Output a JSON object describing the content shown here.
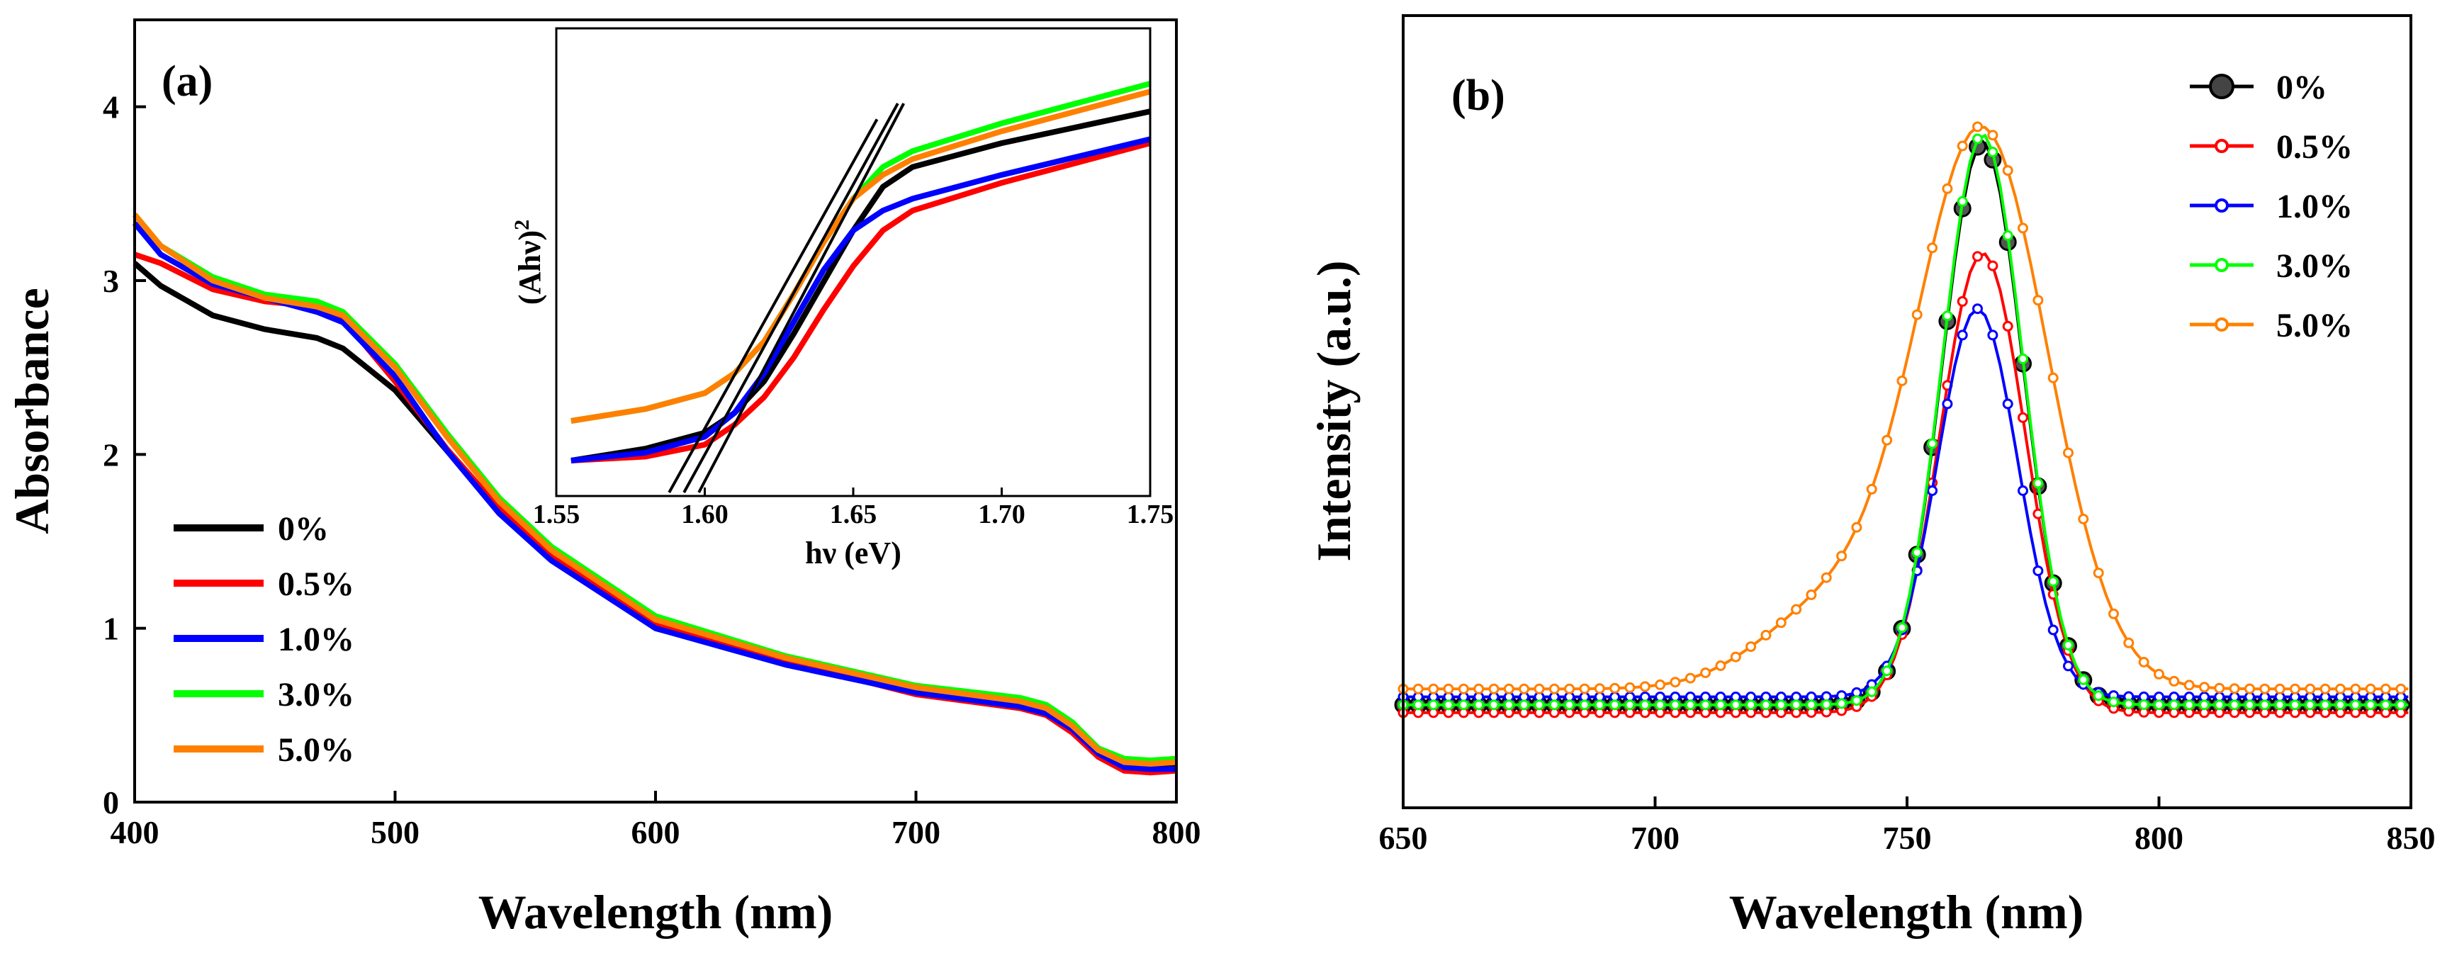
{
  "colors": {
    "0%": "#000000",
    "0.5%": "#ff0000",
    "1.0%": "#0000ff",
    "3.0%": "#00ff00",
    "5.0%": "#ff8000"
  },
  "chart_data": [
    {
      "id": "a",
      "type": "line",
      "panel_label": "(a)",
      "xlabel": "Wavelength (nm)",
      "ylabel": "Absorbance",
      "xlim": [
        400,
        800
      ],
      "ylim": [
        0,
        4.5
      ],
      "xticks": [
        "400",
        "500",
        "600",
        "700",
        "800"
      ],
      "yticks": [
        "0",
        "1",
        "2",
        "3",
        "4"
      ],
      "legend_position": "bottom-left",
      "series": [
        {
          "name": "0%",
          "x": [
            400,
            410,
            430,
            450,
            470,
            480,
            500,
            520,
            540,
            560,
            600,
            650,
            700,
            740,
            750,
            760,
            770,
            780,
            790,
            800
          ],
          "y": [
            3.1,
            2.97,
            2.8,
            2.72,
            2.67,
            2.61,
            2.37,
            2.02,
            1.68,
            1.4,
            1.0,
            0.8,
            0.64,
            0.56,
            0.52,
            0.42,
            0.3,
            0.22,
            0.2,
            0.2
          ]
        },
        {
          "name": "0.5%",
          "x": [
            400,
            410,
            430,
            450,
            470,
            480,
            500,
            520,
            540,
            560,
            600,
            650,
            700,
            740,
            750,
            760,
            770,
            780,
            790,
            800
          ],
          "y": [
            3.15,
            3.1,
            2.95,
            2.88,
            2.85,
            2.78,
            2.42,
            2.03,
            1.69,
            1.41,
            1.03,
            0.81,
            0.62,
            0.54,
            0.5,
            0.4,
            0.26,
            0.18,
            0.17,
            0.18
          ]
        },
        {
          "name": "1.0%",
          "x": [
            400,
            410,
            430,
            450,
            470,
            480,
            500,
            520,
            540,
            560,
            600,
            650,
            700,
            740,
            750,
            760,
            770,
            780,
            790,
            800
          ],
          "y": [
            3.33,
            3.15,
            2.98,
            2.9,
            2.82,
            2.76,
            2.45,
            2.02,
            1.66,
            1.39,
            1.0,
            0.79,
            0.63,
            0.55,
            0.51,
            0.42,
            0.28,
            0.2,
            0.19,
            0.19
          ]
        },
        {
          "name": "3.0%",
          "x": [
            400,
            410,
            430,
            450,
            470,
            480,
            500,
            520,
            540,
            560,
            600,
            650,
            700,
            740,
            750,
            760,
            770,
            780,
            790,
            800
          ],
          "y": [
            3.38,
            3.2,
            3.02,
            2.92,
            2.88,
            2.82,
            2.52,
            2.12,
            1.75,
            1.47,
            1.07,
            0.84,
            0.67,
            0.6,
            0.56,
            0.46,
            0.31,
            0.25,
            0.24,
            0.25
          ]
        },
        {
          "name": "5.0%",
          "x": [
            400,
            410,
            430,
            450,
            470,
            480,
            500,
            520,
            540,
            560,
            600,
            650,
            700,
            740,
            750,
            760,
            770,
            780,
            790,
            800
          ],
          "y": [
            3.38,
            3.2,
            3.0,
            2.9,
            2.85,
            2.8,
            2.5,
            2.1,
            1.73,
            1.45,
            1.05,
            0.83,
            0.66,
            0.58,
            0.54,
            0.44,
            0.3,
            0.23,
            0.22,
            0.23
          ]
        }
      ],
      "inset": {
        "type": "line",
        "xlabel": "hν (eV)",
        "ylabel_main": "(Ahν)",
        "ylabel_sup": "2",
        "xlim": [
          1.55,
          1.75
        ],
        "ylim": [
          0,
          1
        ],
        "xticks": [
          "1.55",
          "1.60",
          "1.65",
          "1.70",
          "1.75"
        ],
        "series": [
          {
            "name": "0%",
            "x": [
              1.555,
              1.58,
              1.6,
              1.61,
              1.62,
              1.63,
              1.64,
              1.65,
              1.66,
              1.67,
              1.7,
              1.75
            ],
            "y": [
              0.0,
              0.03,
              0.07,
              0.12,
              0.2,
              0.32,
              0.45,
              0.58,
              0.69,
              0.74,
              0.8,
              0.88
            ]
          },
          {
            "name": "0.5%",
            "x": [
              1.555,
              1.58,
              1.6,
              1.61,
              1.62,
              1.63,
              1.64,
              1.65,
              1.66,
              1.67,
              1.7,
              1.75
            ],
            "y": [
              0.0,
              0.01,
              0.04,
              0.09,
              0.16,
              0.26,
              0.38,
              0.49,
              0.58,
              0.63,
              0.7,
              0.8
            ]
          },
          {
            "name": "1.0%",
            "x": [
              1.555,
              1.58,
              1.6,
              1.61,
              1.62,
              1.63,
              1.64,
              1.65,
              1.66,
              1.67,
              1.7,
              1.75
            ],
            "y": [
              0.0,
              0.02,
              0.06,
              0.12,
              0.22,
              0.35,
              0.48,
              0.58,
              0.63,
              0.66,
              0.72,
              0.81
            ]
          },
          {
            "name": "3.0%",
            "x": [
              1.555,
              1.58,
              1.6,
              1.61,
              1.62,
              1.63,
              1.64,
              1.65,
              1.66,
              1.67,
              1.7,
              1.75
            ],
            "y": [
              0.1,
              0.13,
              0.17,
              0.22,
              0.3,
              0.42,
              0.55,
              0.66,
              0.74,
              0.78,
              0.85,
              0.95
            ]
          },
          {
            "name": "5.0%",
            "x": [
              1.555,
              1.58,
              1.6,
              1.61,
              1.62,
              1.63,
              1.64,
              1.65,
              1.66,
              1.67,
              1.7,
              1.75
            ],
            "y": [
              0.1,
              0.13,
              0.17,
              0.22,
              0.3,
              0.42,
              0.55,
              0.66,
              0.72,
              0.76,
              0.83,
              0.93
            ]
          }
        ],
        "tangent_lines": [
          {
            "x": [
              1.588,
              1.658
            ],
            "y": [
              0.0,
              0.86
            ]
          },
          {
            "x": [
              1.593,
              1.665
            ],
            "y": [
              0.0,
              0.9
            ]
          },
          {
            "x": [
              1.598,
              1.667
            ],
            "y": [
              0.0,
              0.9
            ]
          }
        ]
      }
    },
    {
      "id": "b",
      "type": "line",
      "panel_label": "(b)",
      "xlabel": "Wavelength (nm)",
      "ylabel": "Intensity (a.u.)",
      "xlim": [
        650,
        850
      ],
      "ylim": [
        0,
        1
      ],
      "xticks": [
        "650",
        "700",
        "750",
        "800",
        "850"
      ],
      "legend_position": "top-right",
      "series": [
        {
          "name": "0%",
          "marker": "circle",
          "center": 765,
          "peak": 0.84,
          "width": 8,
          "baseline": 0.13
        },
        {
          "name": "0.5%",
          "marker": "circle",
          "center": 765,
          "peak": 0.7,
          "width": 8.5,
          "baseline": 0.12
        },
        {
          "name": "1.0%",
          "marker": "circle",
          "center": 764,
          "peak": 0.63,
          "width": 8,
          "baseline": 0.14
        },
        {
          "name": "3.0%",
          "marker": "circle",
          "center": 765,
          "peak": 0.85,
          "width": 8,
          "baseline": 0.13
        },
        {
          "name": "5.0%",
          "marker": "circle",
          "center": 765,
          "peak": 0.85,
          "width": 13,
          "baseline": 0.15
        }
      ]
    }
  ]
}
